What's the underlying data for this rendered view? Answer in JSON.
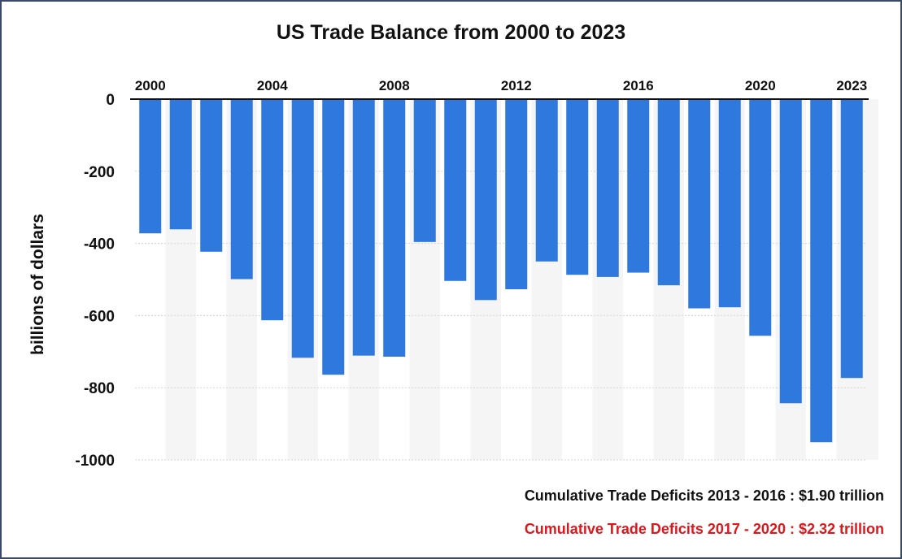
{
  "colors": {
    "bar": "#2f78dd",
    "band": "#f5f5f5",
    "grid": "#d6d6d6",
    "note_black": "#111111",
    "note_red": "#e0161b"
  },
  "chart_data": {
    "type": "bar",
    "title": "US Trade Balance from 2000 to 2023",
    "xlabel": "",
    "ylabel": "billions of dollars",
    "ylim": [
      -1000,
      0
    ],
    "y_ticks": [
      "0",
      "-200",
      "-400",
      "-600",
      "-800",
      "-1000"
    ],
    "y_tick_values": [
      0,
      -200,
      -400,
      -600,
      -800,
      -1000
    ],
    "x_tick_labels": [
      {
        "year": 2000,
        "label": "2000"
      },
      {
        "year": 2004,
        "label": "2004"
      },
      {
        "year": 2008,
        "label": "2008"
      },
      {
        "year": 2012,
        "label": "2012"
      },
      {
        "year": 2016,
        "label": "2016"
      },
      {
        "year": 2020,
        "label": "2020"
      },
      {
        "year": 2023,
        "label": "2023"
      }
    ],
    "categories": [
      2000,
      2001,
      2002,
      2003,
      2004,
      2005,
      2006,
      2007,
      2008,
      2009,
      2010,
      2011,
      2012,
      2013,
      2014,
      2015,
      2016,
      2017,
      2018,
      2019,
      2020,
      2021,
      2022,
      2023
    ],
    "values": [
      -372,
      -361,
      -423,
      -499,
      -613,
      -717,
      -764,
      -711,
      -714,
      -396,
      -504,
      -557,
      -527,
      -450,
      -487,
      -493,
      -481,
      -516,
      -580,
      -577,
      -656,
      -843,
      -951,
      -773
    ],
    "grid": true,
    "legend": "none",
    "notes": [
      "Cumulative Trade Deficits 2013 - 2016 : $1.90 trillion",
      "Cumulative Trade Deficits 2017 - 2020 : $2.32 trillion"
    ]
  }
}
